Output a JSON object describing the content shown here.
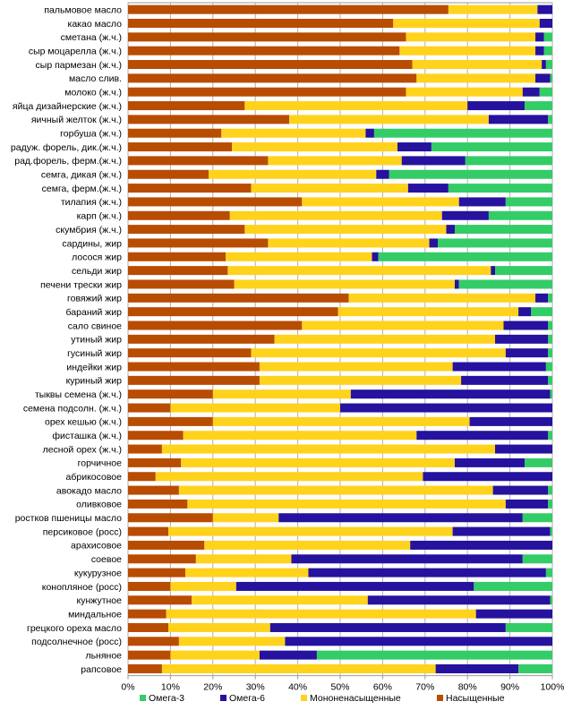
{
  "chart_data": {
    "type": "bar",
    "orientation": "horizontal",
    "stacked": true,
    "percent": true,
    "categories": [
      "пальмовое масло",
      "какао масло",
      "сметана (ж.ч.)",
      "сыр моцарелла (ж.ч.)",
      "сыр пармезан (ж.ч.)",
      "масло слив.",
      "молоко (ж.ч.)",
      "яйца дизайнерские (ж.ч.)",
      "яичный желток (ж.ч.)",
      "горбуша (ж.ч.)",
      "радуж. форель, дик.(ж.ч.)",
      "рад.форель, ферм.(ж.ч.)",
      "семга, дикая (ж.ч.)",
      "семга, ферм.(ж.ч.)",
      "тилапия (ж.ч.)",
      "карп (ж.ч.)",
      "скумбрия (ж.ч.)",
      "сардины, жир",
      "лосося жир",
      "сельди жир",
      "печени трески жир",
      "говяжий жир",
      "бараний жир",
      "сало свиное",
      "утиный жир",
      "гусиный жир",
      "индейки жир",
      "куриный жир",
      "тыквы семена (ж.ч.)",
      "семена подсолн. (ж.ч.)",
      "орех кешью (ж.ч.)",
      "фисташка (ж.ч.)",
      "лесной орех (ж.ч.)",
      "горчичное",
      "абрикосовое",
      "авокадо масло",
      "оливковое",
      "ростков пшеницы масло",
      "персиковое (росс)",
      "арахисовое",
      "соевое",
      "кукурузное",
      "конопляное (росс)",
      "кунжутное",
      "миндальное",
      "грецкого ореха масло",
      "подсолнечное (росс)",
      "льняное",
      "рапсовое"
    ],
    "series": [
      {
        "name": "Насыщенные",
        "color": "#b84c00",
        "values": [
          75.5,
          62.5,
          65.5,
          64,
          67,
          68,
          65.5,
          27.5,
          38,
          22,
          24.5,
          33,
          19,
          29,
          41,
          24,
          27.5,
          33,
          23,
          23.5,
          25,
          52,
          49.5,
          41,
          34.5,
          29,
          31,
          31,
          20,
          10,
          20,
          13,
          8,
          12.5,
          6.5,
          12,
          14,
          20,
          9.5,
          18,
          16,
          13.5,
          10,
          15,
          9,
          9.5,
          12,
          10,
          8
        ]
      },
      {
        "name": "Мононенасыщенные",
        "color": "#ffd21c",
        "values": [
          21,
          34.5,
          30.5,
          32,
          30.5,
          28,
          27.5,
          52.5,
          47,
          34,
          39,
          31.5,
          39.5,
          37,
          37,
          50,
          47.5,
          38,
          34.5,
          62,
          52,
          44,
          42.5,
          47.5,
          52,
          60,
          45.5,
          47.5,
          32.5,
          40,
          60.5,
          55,
          78.5,
          64.5,
          63,
          74,
          75,
          15.5,
          67,
          48.5,
          22.5,
          29,
          15.5,
          41.5,
          73,
          24,
          25,
          21,
          64.5
        ]
      },
      {
        "name": "Омега-6",
        "color": "#25129e",
        "values": [
          3.5,
          3,
          2,
          2,
          1,
          3.5,
          4,
          13.5,
          14,
          2,
          8,
          15,
          3,
          9.5,
          11,
          11,
          2,
          2,
          1.5,
          1,
          1,
          3,
          3,
          10.5,
          12.5,
          10,
          22,
          20.5,
          47,
          50,
          19.5,
          31,
          13.5,
          16.5,
          30.5,
          13,
          10,
          57.5,
          23,
          33.5,
          54.5,
          56,
          56,
          43,
          18,
          55.5,
          63,
          13.5,
          19.5
        ]
      },
      {
        "name": "Омега-3",
        "color": "#33cc66",
        "values": [
          0,
          0,
          2,
          2,
          1.5,
          0.5,
          3,
          6.5,
          1,
          42,
          28.5,
          20.5,
          38.5,
          24.5,
          11,
          15,
          23,
          27,
          41,
          13.5,
          22,
          1,
          5,
          1,
          1,
          1,
          1.5,
          1,
          0.5,
          0,
          0,
          1,
          0,
          6.5,
          0,
          1,
          1,
          7,
          0.5,
          0,
          7,
          1.5,
          18.5,
          0.5,
          0,
          11,
          0,
          55.5,
          8
        ]
      }
    ],
    "xlim": [
      0,
      100
    ],
    "x_ticks": [
      "0%",
      "10%",
      "20%",
      "30%",
      "40%",
      "50%",
      "60%",
      "70%",
      "80%",
      "90%",
      "100%"
    ],
    "legend": {
      "position": "bottom",
      "items": [
        "Омега-3",
        "Омега-6",
        "Мононенасыщенные",
        "Насыщенные"
      ]
    },
    "grid": true
  }
}
